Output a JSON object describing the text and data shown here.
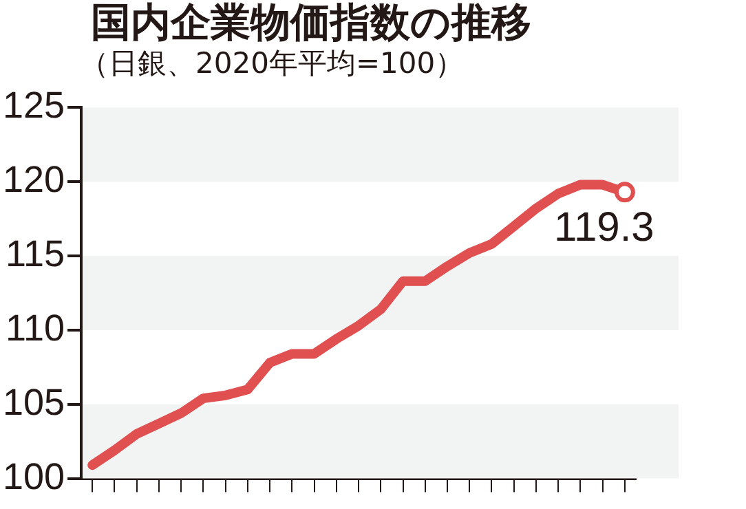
{
  "chart_data": {
    "type": "line",
    "title": "国内企業物価指数の推移",
    "subtitle": "（日銀、2020年平均=100）",
    "categories": [
      null,
      null,
      null,
      null,
      null,
      null,
      null,
      null,
      null,
      null,
      null,
      null,
      null,
      null,
      null,
      null,
      null,
      null,
      null,
      null,
      null,
      null,
      null,
      null,
      null
    ],
    "series": [
      {
        "color": "#e05050",
        "values": [
          100.9,
          101.9,
          103.0,
          103.7,
          104.4,
          105.4,
          105.6,
          106.0,
          107.8,
          108.4,
          108.4,
          109.4,
          110.3,
          111.4,
          113.3,
          113.3,
          114.3,
          115.2,
          115.8,
          117.0,
          118.2,
          119.2,
          119.8,
          119.8,
          119.3
        ],
        "value_labels": [
          null,
          null,
          null,
          null,
          null,
          null,
          null,
          null,
          null,
          null,
          null,
          null,
          null,
          null,
          null,
          null,
          null,
          null,
          null,
          null,
          null,
          null,
          null,
          null,
          "119.3"
        ]
      }
    ],
    "ylim": [
      100,
      125
    ],
    "yticks": [
      100,
      105,
      110,
      115,
      120,
      125
    ],
    "tick_labels": "y",
    "line_style": "solid",
    "legend": false
  }
}
